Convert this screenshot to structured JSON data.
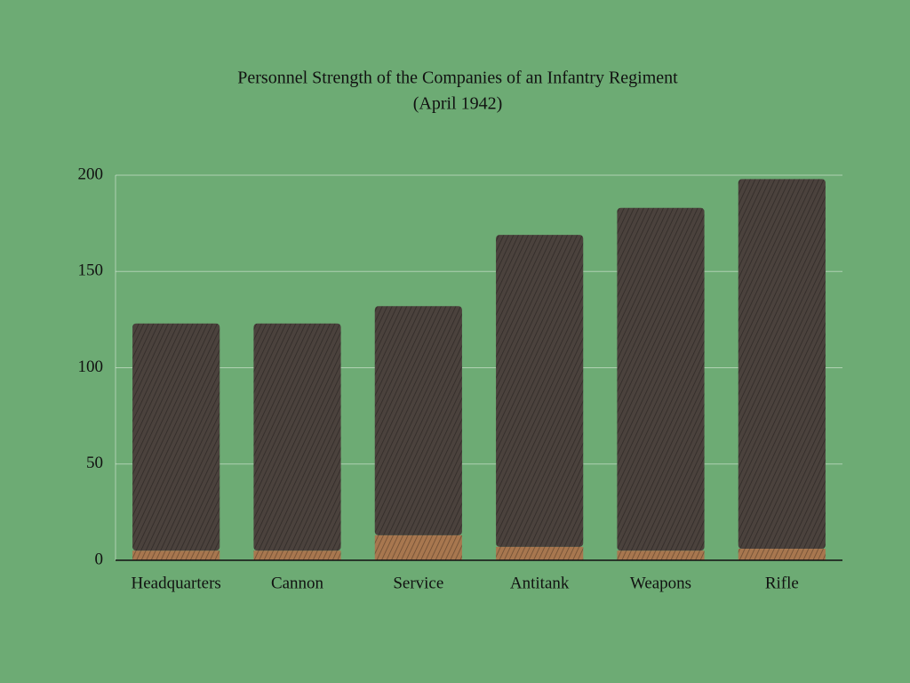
{
  "chart_data": {
    "type": "stacked_bar",
    "title": "Personnel Strength of the Companies of an Infantry Regiment",
    "subtitle": "(April 1942)",
    "categories": [
      "Headquarters",
      "Cannon",
      "Service",
      "Antitank",
      "Weapons",
      "Rifle"
    ],
    "series": [
      {
        "color": "#a8774f",
        "values": [
          5,
          5,
          13,
          7,
          5,
          6
        ]
      },
      {
        "color": "#4b423d",
        "values": [
          118,
          118,
          119,
          162,
          178,
          192
        ]
      }
    ],
    "ylim": [
      0,
      200
    ],
    "yticks": [
      0,
      50,
      100,
      150,
      200
    ],
    "grid": true
  }
}
